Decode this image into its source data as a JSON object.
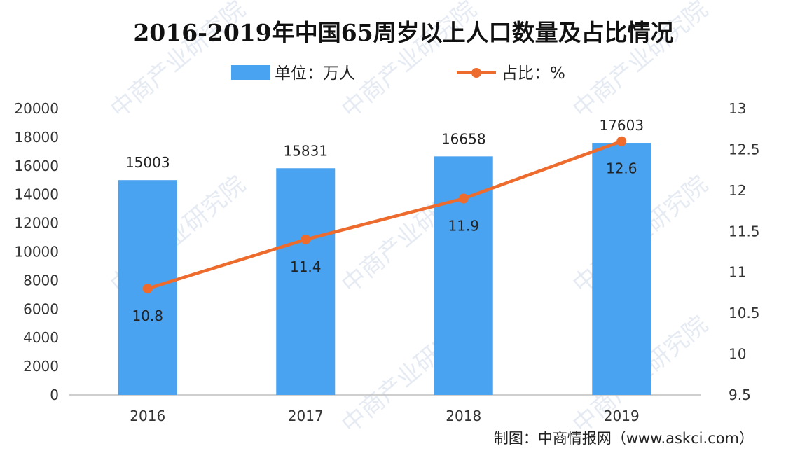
{
  "chart_data": {
    "type": "bar",
    "title": "2016-2019年中国65周岁以上人口数量及占比情况",
    "categories": [
      "2016",
      "2017",
      "2018",
      "2019"
    ],
    "series": [
      {
        "name": "单位：万人",
        "type": "bar",
        "axis": "left",
        "color": "#4aa3f0",
        "values": [
          15003,
          15831,
          16658,
          17603
        ]
      },
      {
        "name": "占比：%",
        "type": "line",
        "axis": "right",
        "color": "#ed6b2d",
        "values": [
          10.8,
          11.4,
          11.9,
          12.6
        ]
      }
    ],
    "y_left": {
      "min": 0,
      "max": 20000,
      "step": 2000,
      "ticks": [
        "0",
        "2000",
        "4000",
        "6000",
        "8000",
        "10000",
        "12000",
        "14000",
        "16000",
        "18000",
        "20000"
      ]
    },
    "y_right": {
      "min": 9.5,
      "max": 13,
      "step": 0.5,
      "ticks": [
        "9.5",
        "10",
        "10.5",
        "11",
        "11.5",
        "12",
        "12.5",
        "13"
      ]
    },
    "legend_position": "top-center",
    "grid": false
  },
  "source": "制图：中商情报网（www.askci.com）",
  "watermark": "中商产业研究院"
}
